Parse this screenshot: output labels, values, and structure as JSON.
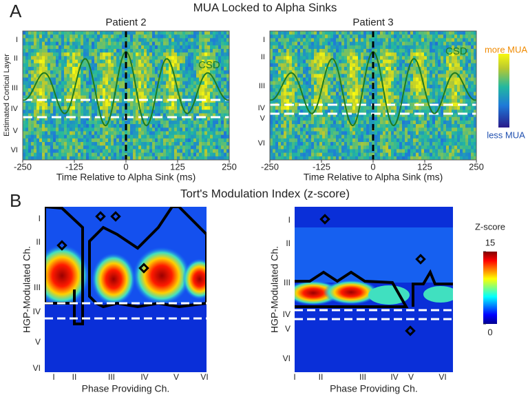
{
  "panel_a": {
    "label": "A",
    "title": "MUA Locked to Alpha Sinks",
    "charts": [
      {
        "title": "Patient 2",
        "xlabel": "Time Relative to Alpha Sink (ms)",
        "ylabel": "Estimated Cortical Layer",
        "xlim": [
          -250,
          250
        ],
        "xticks": [
          -250,
          -125,
          0,
          125,
          250
        ],
        "layers": [
          "I",
          "II",
          "III",
          "IV",
          "V",
          "VI"
        ],
        "curve_label": "CSD"
      },
      {
        "title": "Patient 3",
        "xlabel": "Time Relative to Alpha Sink (ms)",
        "xlim": [
          -250,
          250
        ],
        "xticks": [
          -250,
          -125,
          0,
          125,
          250
        ],
        "layers": [
          "I",
          "II",
          "III",
          "IV",
          "V",
          "VI"
        ],
        "curve_label": "CSD"
      }
    ],
    "colorbar": {
      "top": "more MUA",
      "bottom": "less MUA"
    }
  },
  "panel_b": {
    "label": "B",
    "title": "Tort's Modulation Index (z-score)",
    "charts": [
      {
        "ylabel": "HGP-Modulated Ch.",
        "xlabel": "Phase Providing Ch.",
        "y_layers": [
          "I",
          "II",
          "III",
          "IV",
          "V",
          "VI"
        ],
        "x_layers": [
          "I",
          "II",
          "III",
          "IV",
          "V",
          "VI"
        ]
      },
      {
        "ylabel": "HGP-Modulated Ch.",
        "xlabel": "Phase Providing Ch.",
        "y_layers": [
          "I",
          "II",
          "III",
          "IV",
          "V",
          "VI"
        ],
        "x_layers": [
          "I",
          "II",
          "III",
          "IV",
          "V",
          "VI"
        ]
      }
    ],
    "colorbar": {
      "title": "Z-score",
      "lim": [
        0,
        15
      ],
      "ticks": [
        15,
        0
      ]
    }
  }
}
